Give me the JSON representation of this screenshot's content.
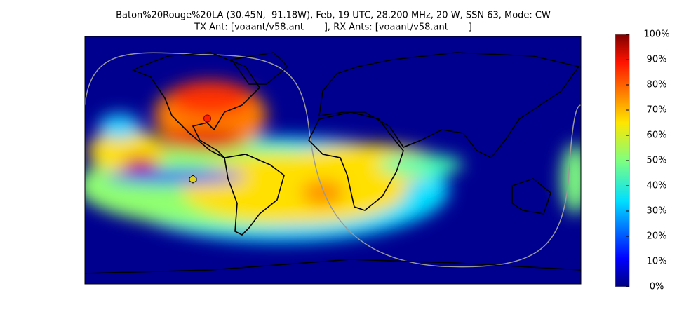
{
  "chart_data": {
    "type": "map",
    "title": [
      "Baton%20Rouge%20LA (30.45N,  91.18W), Feb, 19 UTC, 28.200 MHz, 20 W, SSN 63, Mode: CW",
      "TX Ant: [voaant/v58.ant       ], RX Ants: [voaant/v58.ant       ]"
    ],
    "colorbar": {
      "lim": [
        0,
        100
      ],
      "ticks": [
        {
          "value": 0,
          "label": "0%"
        },
        {
          "value": 10,
          "label": "10%"
        },
        {
          "value": 20,
          "label": "20%"
        },
        {
          "value": 30,
          "label": "30%"
        },
        {
          "value": 40,
          "label": "40%"
        },
        {
          "value": 50,
          "label": "50%"
        },
        {
          "value": 60,
          "label": "60%"
        },
        {
          "value": 70,
          "label": "70%"
        },
        {
          "value": 80,
          "label": "80%"
        },
        {
          "value": 90,
          "label": "90%"
        },
        {
          "value": 100,
          "label": "100%"
        }
      ]
    }
  }
}
